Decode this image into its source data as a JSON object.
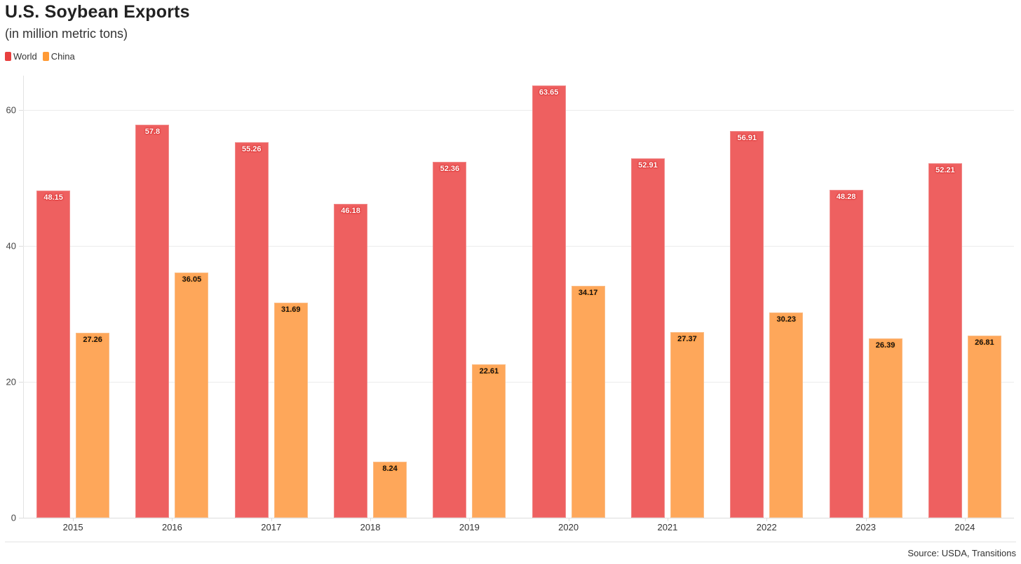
{
  "header": {
    "title": "U.S. Soybean Exports",
    "subtitle": "(in million metric tons)"
  },
  "legend": [
    {
      "label": "World",
      "color": "#e8403f"
    },
    {
      "label": "China",
      "color": "#ff9a35"
    }
  ],
  "footer": {
    "source": "Source: USDA, Transitions"
  },
  "y_ticks": [
    "0",
    "20",
    "40",
    "60"
  ],
  "chart_data": {
    "type": "bar",
    "title": "U.S. Soybean Exports",
    "subtitle": "(in million metric tons)",
    "xlabel": "",
    "ylabel": "",
    "ylim": [
      0,
      65
    ],
    "grid": true,
    "legend_position": "top-left",
    "categories": [
      "2015",
      "2016",
      "2017",
      "2018",
      "2019",
      "2020",
      "2021",
      "2022",
      "2023",
      "2024"
    ],
    "series": [
      {
        "name": "World",
        "color": "#ee6060",
        "values": [
          48.15,
          57.8,
          55.26,
          46.18,
          52.36,
          63.65,
          52.91,
          56.91,
          48.28,
          52.21
        ]
      },
      {
        "name": "China",
        "color": "#fea75a",
        "values": [
          27.26,
          36.05,
          31.69,
          8.24,
          22.61,
          34.17,
          27.37,
          30.23,
          26.39,
          26.81
        ]
      }
    ],
    "y_ticks": [
      0,
      20,
      40,
      60
    ],
    "source": "Source: USDA, Transitions"
  }
}
